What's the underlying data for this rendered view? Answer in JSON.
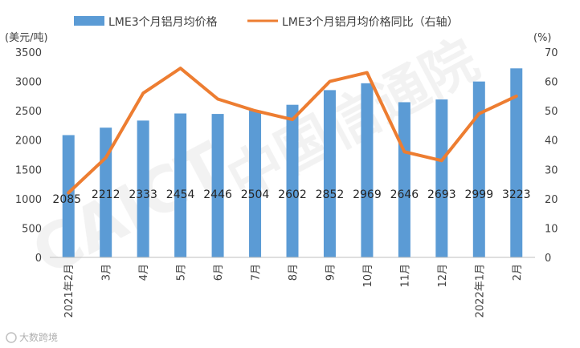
{
  "chart_data": {
    "type": "bar+line",
    "categories": [
      "2021年2月",
      "3月",
      "4月",
      "5月",
      "6月",
      "7月",
      "8月",
      "9月",
      "10月",
      "11月",
      "12月",
      "2022年1月",
      "2月"
    ],
    "series": [
      {
        "name": "LME3个月铝月均价格",
        "type": "bar",
        "axis": "left",
        "color": "#5b9bd5",
        "values": [
          2085,
          2212,
          2333,
          2454,
          2446,
          2504,
          2602,
          2852,
          2969,
          2646,
          2693,
          2999,
          3223
        ]
      },
      {
        "name": "LME3个月铝月均价格同比（右轴）",
        "type": "line",
        "axis": "right",
        "color": "#ed7d31",
        "values": [
          22,
          34,
          56,
          64.5,
          54,
          50,
          47,
          60,
          63,
          36,
          33,
          49,
          55
        ]
      }
    ],
    "left_axis": {
      "unit_label": "(美元/吨)",
      "ylim": [
        0,
        3500
      ],
      "ticks": [
        "0",
        "500",
        "1000",
        "1500",
        "2000",
        "2500",
        "3000",
        "3500"
      ]
    },
    "right_axis": {
      "unit_label": "(%)",
      "ylim": [
        0,
        70
      ],
      "ticks": [
        "0",
        "10",
        "20",
        "30",
        "40",
        "50",
        "60",
        "70"
      ]
    },
    "legend_position": "top"
  },
  "watermark": {
    "text_latin": "CAICT",
    "text_cjk": "中国信通院"
  },
  "source_badge": {
    "text": "大数跨境"
  },
  "colors": {
    "bar": "#5b9bd5",
    "line": "#ed7d31",
    "axis": "#bfbfbf",
    "text": "#404040"
  }
}
